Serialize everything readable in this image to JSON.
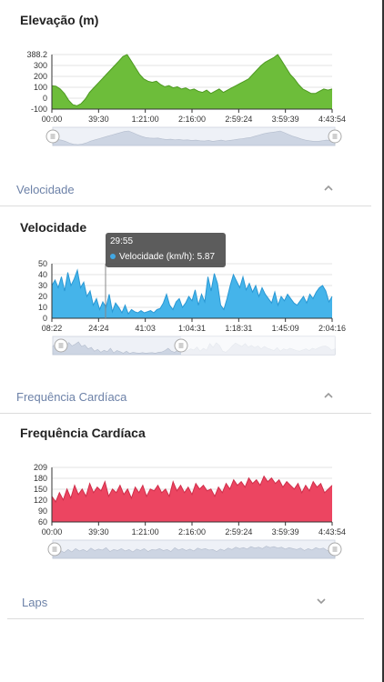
{
  "charts": [
    {
      "title": "Elevação (m)",
      "color": "#6dbd3a",
      "stroke": "#4e9a22",
      "y_ticks": [
        "388.2",
        "300",
        "200",
        "100",
        "0",
        "-100"
      ],
      "x_ticks": [
        "00:00",
        "39:30",
        "1:21:00",
        "2:16:00",
        "2:59:24",
        "3:59:39",
        "4:43:54"
      ]
    },
    {
      "title": "Velocidade",
      "color": "#45b4ea",
      "stroke": "#2a98d4",
      "y_ticks": [
        "50",
        "40",
        "30",
        "20",
        "10",
        "0"
      ],
      "x_ticks": [
        "08:22",
        "24:24",
        "41:03",
        "1:04:31",
        "1:18:31",
        "1:45:09",
        "2:04:16"
      ]
    },
    {
      "title": "Frequência Cardíaca",
      "color": "#ec4561",
      "stroke": "#cf2f4b",
      "y_ticks": [
        "209",
        "180",
        "150",
        "120",
        "90",
        "60"
      ],
      "x_ticks": [
        "00:00",
        "39:30",
        "1:21:00",
        "2:16:00",
        "2:59:24",
        "3:59:39",
        "4:43:54"
      ]
    }
  ],
  "sections": {
    "velocidade": "Velocidade",
    "frequencia": "Frequência Cardíaca",
    "laps": "Laps"
  },
  "tooltip": {
    "time": "29:55",
    "label": "Velocidade (km/h): 5.87"
  },
  "chart_data": [
    {
      "type": "area",
      "title": "Elevação (m)",
      "ylim": [
        -100,
        388.2
      ],
      "x_ticks": [
        "00:00",
        "39:30",
        "1:21:00",
        "2:16:00",
        "2:59:24",
        "3:59:39",
        "4:43:54"
      ],
      "y": [
        110,
        105,
        80,
        40,
        -20,
        -60,
        -70,
        -50,
        -10,
        50,
        90,
        130,
        170,
        210,
        250,
        290,
        330,
        370,
        388,
        330,
        270,
        210,
        170,
        150,
        140,
        150,
        120,
        100,
        110,
        90,
        100,
        80,
        90,
        70,
        80,
        60,
        50,
        70,
        40,
        60,
        80,
        50,
        70,
        90,
        110,
        130,
        150,
        170,
        210,
        250,
        290,
        320,
        340,
        360,
        388,
        330,
        270,
        210,
        170,
        120,
        80,
        60,
        40,
        40,
        60,
        80,
        70,
        80
      ]
    },
    {
      "type": "area",
      "title": "Velocidade",
      "ylim": [
        0,
        50
      ],
      "x_ticks": [
        "08:22",
        "24:24",
        "41:03",
        "1:04:31",
        "1:18:31",
        "1:45:09",
        "2:04:16"
      ],
      "y": [
        30,
        35,
        28,
        38,
        25,
        42,
        30,
        36,
        44,
        28,
        33,
        20,
        25,
        12,
        18,
        8,
        15,
        10,
        22,
        6,
        14,
        10,
        5,
        12,
        4,
        8,
        6,
        5,
        7,
        5,
        6,
        7,
        5,
        8,
        9,
        14,
        22,
        12,
        8,
        15,
        18,
        10,
        14,
        20,
        16,
        26,
        12,
        22,
        15,
        38,
        25,
        41,
        32,
        12,
        8,
        18,
        30,
        40,
        34,
        28,
        38,
        26,
        32,
        24,
        30,
        20,
        28,
        22,
        18,
        14,
        24,
        12,
        20,
        16,
        22,
        18,
        14,
        12,
        16,
        20,
        14,
        22,
        18,
        24,
        28,
        30,
        25,
        15,
        20
      ]
    },
    {
      "type": "area",
      "title": "Frequência Cardíaca",
      "ylim": [
        60,
        209
      ],
      "x_ticks": [
        "00:00",
        "39:30",
        "1:21:00",
        "2:16:00",
        "2:59:24",
        "3:59:39",
        "4:43:54"
      ],
      "y": [
        130,
        115,
        140,
        120,
        150,
        125,
        160,
        135,
        150,
        130,
        165,
        140,
        155,
        145,
        170,
        130,
        150,
        140,
        160,
        135,
        150,
        125,
        155,
        140,
        160,
        130,
        150,
        145,
        160,
        140,
        150,
        130,
        170,
        145,
        160,
        140,
        155,
        135,
        165,
        150,
        160,
        145,
        150,
        130,
        155,
        140,
        165,
        150,
        175,
        160,
        170,
        155,
        180,
        165,
        175,
        160,
        185,
        170,
        180,
        165,
        175,
        155,
        170,
        160,
        150,
        165,
        140,
        160,
        145,
        170,
        155,
        165,
        140,
        150,
        160
      ]
    }
  ]
}
